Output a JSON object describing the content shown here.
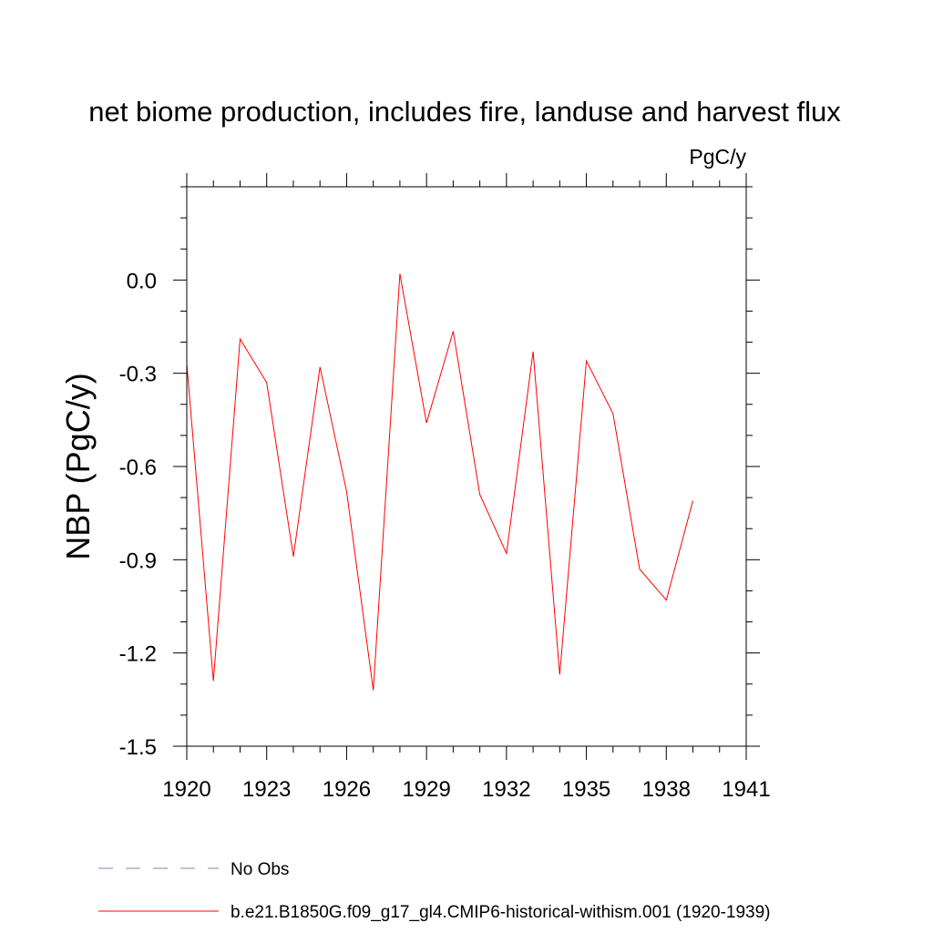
{
  "chart_data": {
    "type": "line",
    "title": "net biome production, includes fire, landuse and harvest flux",
    "units_label": "PgC/y",
    "ylabel": "NBP  (PgC/y)",
    "xlabel": "",
    "xlim": [
      1920,
      1941
    ],
    "ylim": [
      -1.5,
      0.3
    ],
    "x_ticks": [
      1920,
      1923,
      1926,
      1929,
      1932,
      1935,
      1938,
      1941
    ],
    "x_tick_labels": [
      "1920",
      "1923",
      "1926",
      "1929",
      "1932",
      "1935",
      "1938",
      "1941"
    ],
    "y_ticks": [
      -1.5,
      -1.2,
      -0.9,
      -0.6,
      -0.3,
      0.0
    ],
    "y_tick_labels": [
      "-1.5",
      "-1.2",
      "-0.9",
      "-0.6",
      "-0.3",
      "0.0"
    ],
    "x_minor_step": 1,
    "y_minor_step": 0.1,
    "grid": false,
    "legend_position": "bottom-left",
    "series": [
      {
        "name": "b.e21.B1850G.f09_g17_gl4.CMIP6-historical-withism.001 (1920-1939)",
        "color": "#ff0000",
        "style": "solid",
        "x": [
          1920,
          1921,
          1922,
          1923,
          1924,
          1925,
          1926,
          1927,
          1928,
          1929,
          1930,
          1931,
          1932,
          1933,
          1934,
          1935,
          1936,
          1937,
          1938,
          1939
        ],
        "y": [
          -0.27,
          -1.29,
          -0.19,
          -0.33,
          -0.89,
          -0.28,
          -0.68,
          -1.32,
          0.02,
          -0.46,
          -0.165,
          -0.69,
          -0.88,
          -0.23,
          -1.27,
          -0.26,
          -0.43,
          -0.93,
          -1.03,
          -0.71
        ]
      }
    ],
    "legend": [
      {
        "label": "No Obs",
        "color": "#8a7fb8",
        "style": "dashed"
      },
      {
        "label": "b.e21.B1850G.f09_g17_gl4.CMIP6-historical-withism.001 (1920-1939)",
        "color": "#ff0000",
        "style": "solid"
      }
    ]
  }
}
